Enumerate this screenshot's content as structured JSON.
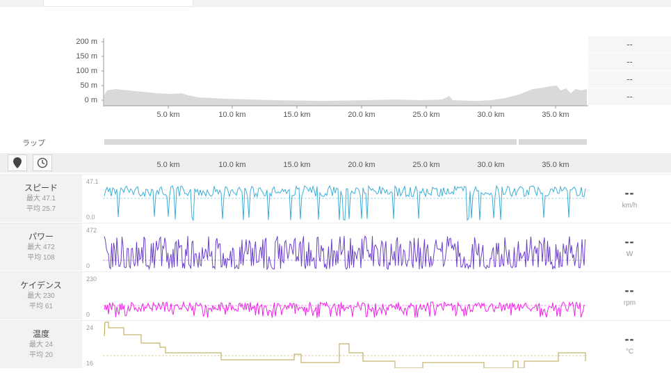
{
  "elevation": {
    "y_ticks": [
      "200 m",
      "150 m",
      "100 m",
      "50 m",
      "0 m"
    ],
    "x_ticks": [
      "5.0 km",
      "10.0 km",
      "15.0 km",
      "20.0 km",
      "25.0 km",
      "30.0 km",
      "35.0 km"
    ],
    "side_values": [
      "--",
      "--",
      "--",
      "--"
    ]
  },
  "laps": {
    "label": "ラップ"
  },
  "toolbar": {
    "distance_icon": "location-pin-icon",
    "time_icon": "clock-icon",
    "x_ticks": [
      "5.0 km",
      "10.0 km",
      "15.0 km",
      "20.0 km",
      "25.0 km",
      "30.0 km",
      "35.0 km"
    ]
  },
  "metrics": [
    {
      "name": "スピード",
      "max": "最大 47.1",
      "avg": "平均 25.7",
      "y_top": "47.1",
      "y_bottom": "0.0",
      "value": "--",
      "unit": "km/h",
      "color": "#3aaed8"
    },
    {
      "name": "パワー",
      "max": "最大 472",
      "avg": "平均 108",
      "y_top": "472",
      "y_bottom": "0",
      "value": "--",
      "unit": "W",
      "color": "#6a3fc8"
    },
    {
      "name": "ケイデンス",
      "max": "最大 230",
      "avg": "平均 61",
      "y_top": "230",
      "y_bottom": "0",
      "value": "--",
      "unit": "rpm",
      "color": "#f020e8"
    },
    {
      "name": "温度",
      "max": "最大 24",
      "avg": "平均 20",
      "y_top": "24",
      "y_bottom": "16",
      "value": "--",
      "unit": "°C",
      "color": "#b5a24a"
    }
  ]
}
